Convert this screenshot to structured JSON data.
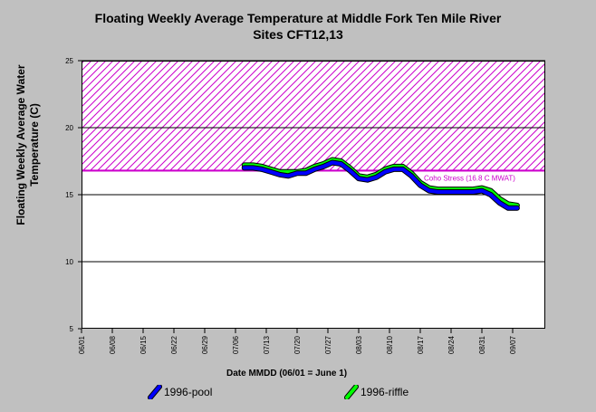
{
  "chart_data": {
    "type": "line",
    "title_line1": "Floating Weekly Average Temperature at Middle Fork Ten Mile River",
    "title_line2": "Sites CFT12,13",
    "ylabel_line1": "Floating Weekly Average Water",
    "ylabel_line2": "Temperature (C)",
    "xlabel": "Date MMDD (06/01 = June 1)",
    "x_tick_labels": [
      "06/01",
      "06/08",
      "06/15",
      "06/22",
      "06/29",
      "07/06",
      "07/13",
      "07/20",
      "07/27",
      "08/03",
      "08/10",
      "08/17",
      "08/24",
      "08/31",
      "09/07"
    ],
    "y_ticks": [
      5,
      10,
      15,
      20,
      25
    ],
    "ylim": [
      5,
      25
    ],
    "xlim_days": [
      0,
      104
    ],
    "grid": "horizontal",
    "stress_band": {
      "label": "Coho Stress (16.8 C MWAT)",
      "from": 16.8,
      "to": 25,
      "color": "#cc00cc"
    },
    "series": [
      {
        "name": "1996-pool",
        "color": "#0000ff",
        "x": [
          "07/08",
          "07/10",
          "07/12",
          "07/14",
          "07/16",
          "07/18",
          "07/20",
          "07/22",
          "07/24",
          "07/26",
          "07/28",
          "07/30",
          "08/01",
          "08/03",
          "08/05",
          "08/07",
          "08/09",
          "08/11",
          "08/13",
          "08/15",
          "08/17",
          "08/19",
          "08/21",
          "08/23",
          "08/25",
          "08/27",
          "08/29",
          "08/31",
          "09/02",
          "09/04",
          "09/06",
          "09/08"
        ],
        "y": [
          17.0,
          17.0,
          16.9,
          16.7,
          16.5,
          16.4,
          16.6,
          16.6,
          16.9,
          17.1,
          17.4,
          17.3,
          16.8,
          16.2,
          16.1,
          16.3,
          16.7,
          16.9,
          16.9,
          16.4,
          15.7,
          15.3,
          15.2,
          15.2,
          15.2,
          15.2,
          15.2,
          15.3,
          15.0,
          14.4,
          14.0,
          14.0
        ]
      },
      {
        "name": "1996-riffle",
        "color": "#00ff00",
        "x": [
          "07/08",
          "07/10",
          "07/12",
          "07/14",
          "07/16",
          "07/18",
          "07/20",
          "07/22",
          "07/24",
          "07/26",
          "07/28",
          "07/30",
          "08/01",
          "08/03",
          "08/05",
          "08/07",
          "08/09",
          "08/11",
          "08/13",
          "08/15",
          "08/17",
          "08/19",
          "08/21",
          "08/23",
          "08/25",
          "08/27",
          "08/29",
          "08/31",
          "09/02",
          "09/04",
          "09/06",
          "09/08"
        ],
        "y": [
          17.2,
          17.2,
          17.1,
          16.9,
          16.7,
          16.7,
          16.7,
          16.8,
          17.1,
          17.3,
          17.6,
          17.5,
          17.0,
          16.4,
          16.3,
          16.5,
          16.9,
          17.1,
          17.1,
          16.6,
          15.9,
          15.5,
          15.4,
          15.4,
          15.4,
          15.4,
          15.4,
          15.5,
          15.3,
          14.7,
          14.3,
          14.2
        ]
      }
    ]
  }
}
